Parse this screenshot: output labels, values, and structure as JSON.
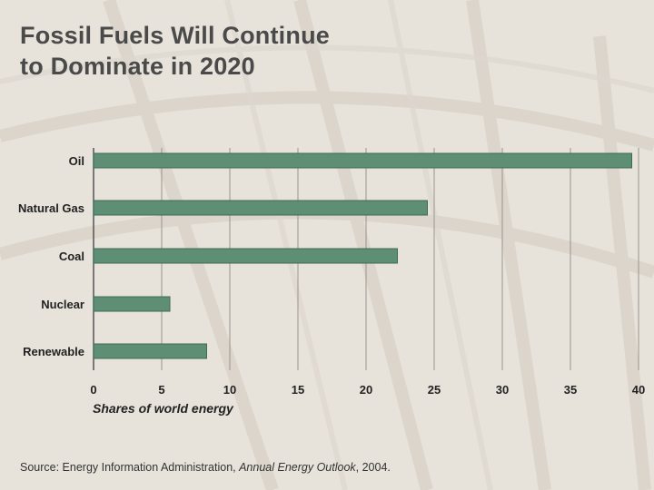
{
  "title": {
    "line1": "Fossil Fuels Will Continue",
    "line2": "to Dominate in 2020"
  },
  "chart_data": {
    "type": "bar",
    "orientation": "horizontal",
    "categories": [
      "Oil",
      "Natural Gas",
      "Coal",
      "Nuclear",
      "Renewable"
    ],
    "values": [
      39.5,
      24.5,
      22.3,
      5.6,
      8.3
    ],
    "xlim": [
      0,
      40
    ],
    "xticks": [
      "0",
      "5",
      "10",
      "15",
      "20",
      "25",
      "30",
      "35",
      "40"
    ],
    "xlabel": "Shares of world energy",
    "ylabel": "",
    "grid": true,
    "bar_color": "#5e8f74"
  },
  "source": {
    "prefix": "Source: Energy Information Administration, ",
    "publication": "Annual Energy Outlook",
    "suffix": ", 2004."
  }
}
